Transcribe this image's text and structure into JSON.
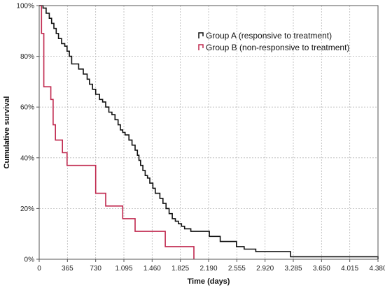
{
  "chart_data": {
    "type": "line",
    "xlabel": "Time (days)",
    "ylabel": "Cumulative survival",
    "xlim": [
      0,
      4380
    ],
    "ylim": [
      0,
      100
    ],
    "x_ticks": [
      0,
      365,
      730,
      1095,
      1460,
      1825,
      2190,
      2555,
      2920,
      3285,
      3650,
      4015,
      4380
    ],
    "x_tick_labels": [
      "0",
      "365",
      "730",
      "1.095",
      "1.460",
      "1.825",
      "2.190",
      "2.555",
      "2.920",
      "3.285",
      "3.650",
      "4.015",
      "4.380"
    ],
    "y_ticks": [
      0,
      20,
      40,
      60,
      80,
      100
    ],
    "y_tick_labels": [
      "0%",
      "20%",
      "40%",
      "60%",
      "80%",
      "100%"
    ],
    "grid": true,
    "legend": {
      "position": "top-right"
    },
    "series": [
      {
        "name": "Group A (responsive to treatment)",
        "color": "#111111",
        "step": true,
        "points": [
          [
            0,
            100
          ],
          [
            50,
            99
          ],
          [
            90,
            97
          ],
          [
            130,
            95
          ],
          [
            160,
            93
          ],
          [
            190,
            91
          ],
          [
            220,
            89
          ],
          [
            250,
            87
          ],
          [
            290,
            85
          ],
          [
            330,
            84
          ],
          [
            360,
            82
          ],
          [
            390,
            80
          ],
          [
            420,
            77
          ],
          [
            510,
            75
          ],
          [
            570,
            73
          ],
          [
            620,
            71
          ],
          [
            650,
            69
          ],
          [
            690,
            67
          ],
          [
            730,
            65
          ],
          [
            780,
            63
          ],
          [
            820,
            62
          ],
          [
            860,
            60
          ],
          [
            900,
            58
          ],
          [
            940,
            57
          ],
          [
            980,
            55
          ],
          [
            1020,
            53
          ],
          [
            1050,
            51
          ],
          [
            1080,
            50
          ],
          [
            1110,
            49
          ],
          [
            1160,
            47
          ],
          [
            1200,
            45
          ],
          [
            1240,
            43
          ],
          [
            1270,
            41
          ],
          [
            1290,
            39
          ],
          [
            1310,
            37
          ],
          [
            1340,
            35
          ],
          [
            1370,
            33
          ],
          [
            1400,
            32
          ],
          [
            1430,
            30
          ],
          [
            1470,
            28
          ],
          [
            1500,
            26
          ],
          [
            1560,
            24
          ],
          [
            1600,
            22
          ],
          [
            1640,
            20
          ],
          [
            1680,
            18
          ],
          [
            1720,
            16
          ],
          [
            1760,
            15
          ],
          [
            1800,
            14
          ],
          [
            1840,
            13
          ],
          [
            1880,
            12
          ],
          [
            1960,
            11
          ],
          [
            2200,
            9
          ],
          [
            2340,
            7
          ],
          [
            2550,
            5
          ],
          [
            2650,
            4
          ],
          [
            2800,
            3
          ],
          [
            3250,
            1
          ],
          [
            4380,
            0
          ]
        ]
      },
      {
        "name": "Group B (non-responsive to treatment)",
        "color": "#c0284e",
        "step": true,
        "points": [
          [
            0,
            100
          ],
          [
            30,
            89
          ],
          [
            60,
            68
          ],
          [
            150,
            63
          ],
          [
            180,
            53
          ],
          [
            210,
            47
          ],
          [
            300,
            42
          ],
          [
            360,
            37
          ],
          [
            730,
            26
          ],
          [
            860,
            21
          ],
          [
            1080,
            16
          ],
          [
            1240,
            11
          ],
          [
            1630,
            5
          ],
          [
            2000,
            0
          ]
        ]
      }
    ]
  }
}
